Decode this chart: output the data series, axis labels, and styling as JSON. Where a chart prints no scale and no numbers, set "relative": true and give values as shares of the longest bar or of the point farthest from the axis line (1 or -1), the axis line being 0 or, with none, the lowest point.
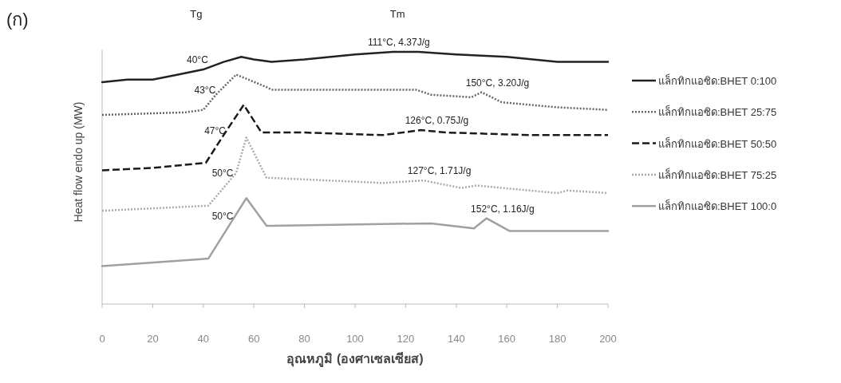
{
  "chart_data": {
    "type": "line",
    "title": "(ก)",
    "xlabel": "อุณหภูมิ (องศาเซลเซียส)",
    "ylabel": "Heat flow endo up (MW)",
    "relative": true,
    "xlim": [
      0,
      200
    ],
    "xticks": [
      0,
      20,
      40,
      60,
      80,
      100,
      120,
      140,
      160,
      180,
      200
    ],
    "grid": false,
    "legend": "right",
    "marker": "none",
    "series": [
      {
        "name": "แล็กทิกแอซิด:BHET 0:100",
        "color": "#222222",
        "line_style": "solid",
        "x": [
          0,
          10,
          20,
          30,
          40,
          48,
          55,
          60,
          67,
          80,
          100,
          115,
          125,
          140,
          160,
          180,
          200
        ],
        "values": [
          0.88,
          0.89,
          0.89,
          0.91,
          0.93,
          0.96,
          0.98,
          0.97,
          0.96,
          0.97,
          0.99,
          1,
          1,
          0.99,
          0.98,
          0.96,
          0.96
        ]
      },
      {
        "name": "แล็กทิกแอซิด:BHET 25:75",
        "color": "#666666",
        "line_style": "dotted",
        "x": [
          0,
          33,
          40,
          45,
          53,
          65,
          67,
          100,
          124,
          130,
          146,
          150,
          158,
          180,
          200
        ],
        "values": [
          0.75,
          0.76,
          0.77,
          0.83,
          0.91,
          0.86,
          0.85,
          0.85,
          0.85,
          0.83,
          0.82,
          0.84,
          0.8,
          0.78,
          0.77
        ]
      },
      {
        "name": "แล็กทิกแอซิด:BHET 50:50",
        "color": "#1a1a1a",
        "line_style": "dashed",
        "x": [
          0,
          20,
          41,
          48,
          56,
          63,
          80,
          111,
          126,
          136,
          170,
          200
        ],
        "values": [
          0.53,
          0.54,
          0.56,
          0.67,
          0.79,
          0.68,
          0.68,
          0.67,
          0.69,
          0.68,
          0.67,
          0.67
        ]
      },
      {
        "name": "แล็กทิกแอซิด:BHET 75:25",
        "color": "#aaaaaa",
        "line_style": "dotted",
        "x": [
          0,
          42,
          53,
          57,
          65,
          67,
          111,
          127,
          142,
          148,
          180,
          184,
          200
        ],
        "values": [
          0.37,
          0.39,
          0.52,
          0.66,
          0.5,
          0.5,
          0.48,
          0.49,
          0.46,
          0.47,
          0.44,
          0.45,
          0.44
        ]
      },
      {
        "name": "แล็กทิกแอซิด:BHET 100:0",
        "color": "#a0a0a0",
        "line_style": "solid",
        "x": [
          0,
          42,
          52,
          57,
          65,
          67,
          130,
          147,
          152,
          161,
          200
        ],
        "values": [
          0.15,
          0.18,
          0.34,
          0.42,
          0.31,
          0.31,
          0.32,
          0.3,
          0.34,
          0.29,
          0.29
        ]
      }
    ],
    "annotations": [
      "Tg",
      "Tm",
      {
        "text": "40°C",
        "x": 40,
        "y": 0.93
      },
      {
        "text": "43°C",
        "x": 43,
        "y": 0.81
      },
      {
        "text": "47°C",
        "x": 47,
        "y": 0.65
      },
      {
        "text": "50°C",
        "x": 50,
        "y": 0.48
      },
      {
        "text": "50°C",
        "x": 50,
        "y": 0.31
      },
      {
        "text": "111°C, 4.37J/g",
        "x": 111,
        "y": 1
      },
      {
        "text": "150°C, 3.20J/g",
        "x": 150,
        "y": 0.84
      },
      {
        "text": "126°C, 0.75J/g",
        "x": 126,
        "y": 0.69
      },
      {
        "text": "127°C, 1.71J/g",
        "x": 127,
        "y": 0.49
      },
      {
        "text": "152°C, 1.16J/g",
        "x": 152,
        "y": 0.34
      }
    ]
  }
}
